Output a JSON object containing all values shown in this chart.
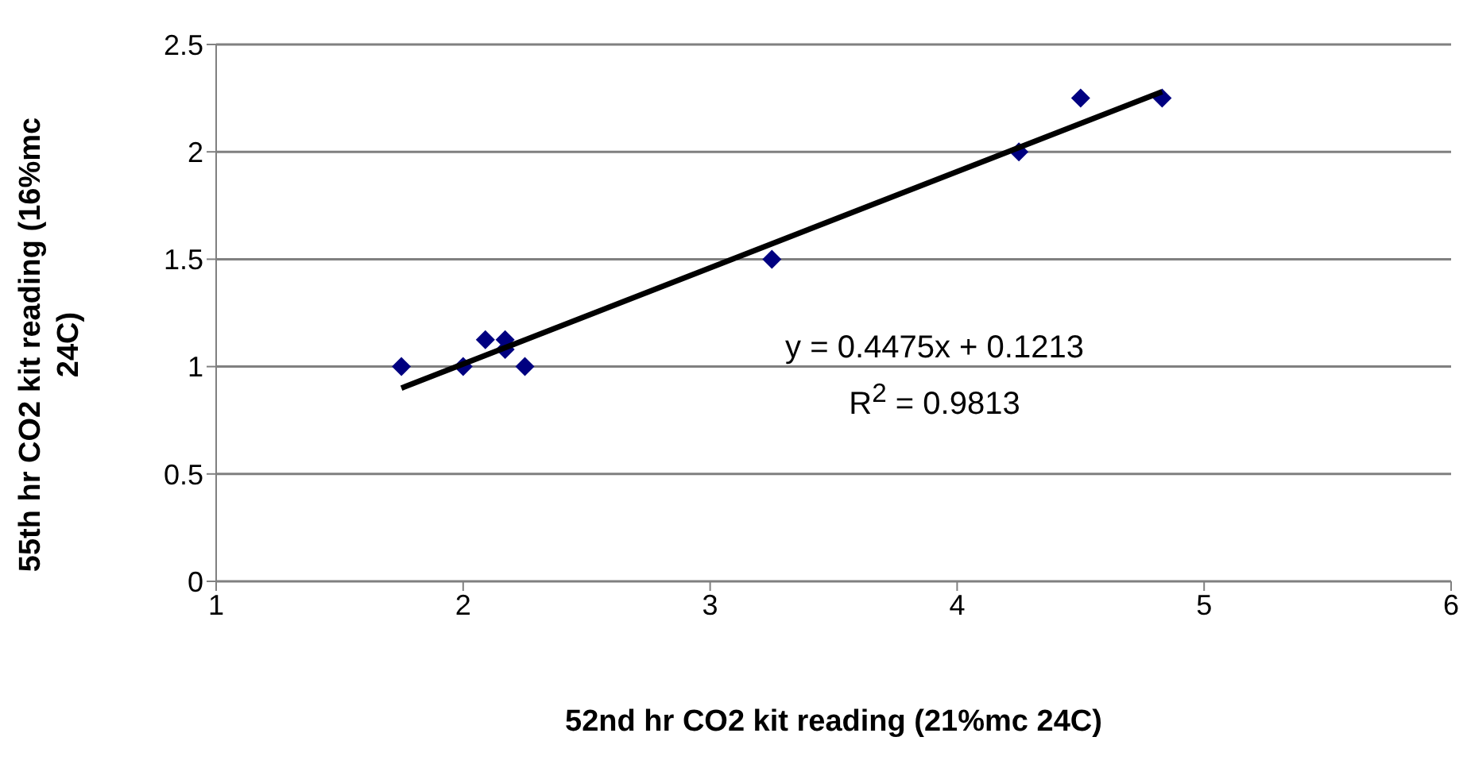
{
  "chart_data": {
    "type": "scatter",
    "xlabel": "52nd hr CO2 kit reading (21%mc 24C)",
    "ylabel": "55th hr CO2 kit reading (16%mc 24C)",
    "xlim": [
      1,
      6
    ],
    "xticks": [
      1,
      2,
      3,
      4,
      5,
      6
    ],
    "ylim": [
      0,
      2.5
    ],
    "yticks": [
      0,
      0.5,
      1,
      1.5,
      2,
      2.5
    ],
    "grid": "y",
    "legend": false,
    "marker": "diamond",
    "series": [
      {
        "color": "#000080",
        "x": [
          1.75,
          2,
          2.09,
          2.17,
          2.17,
          2.25,
          3.25,
          4.25,
          4.5,
          4.83
        ],
        "values": [
          1,
          1,
          1.125,
          1.125,
          1.08,
          1,
          1.5,
          2,
          2.25,
          2.25
        ]
      },
      {
        "type": "line",
        "marker": "none",
        "color": "#000000",
        "x": [
          1.75,
          4.83
        ],
        "values": [
          0.9,
          2.28
        ]
      }
    ],
    "annotations": [
      "y = 0.4475x + 0.1213",
      "R$^{2}$ = 0.9813"
    ]
  }
}
